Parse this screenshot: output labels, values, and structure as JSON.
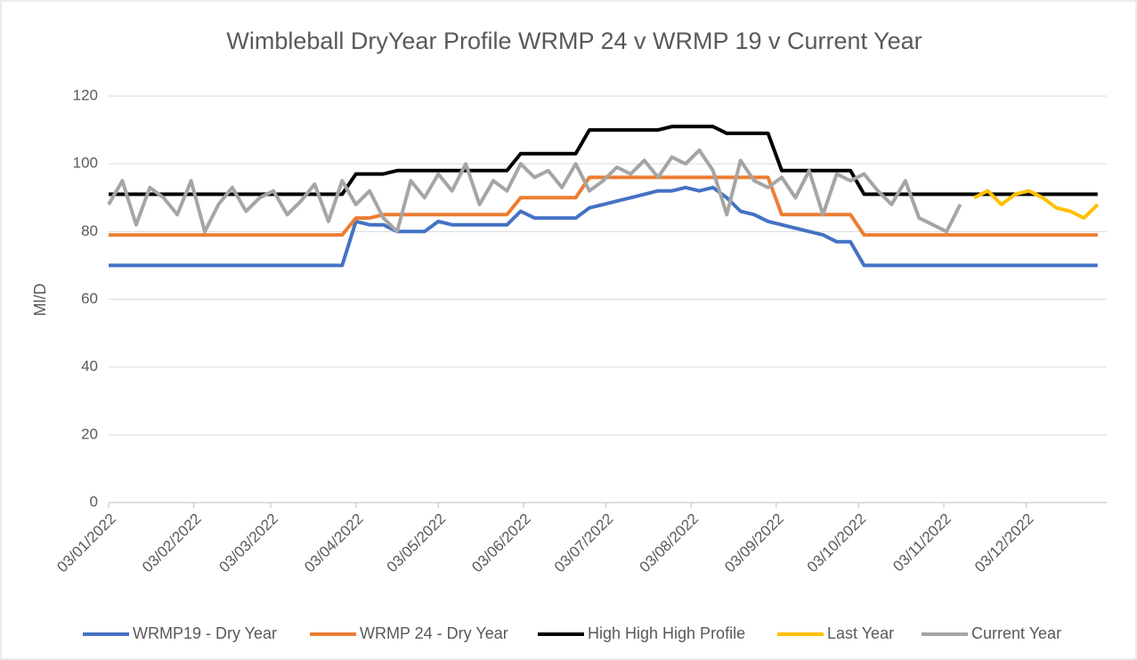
{
  "chart_data": {
    "type": "line",
    "title": "Wimbleball DryYear Profile WRMP 24 v WRMP 19 v Current Year",
    "y_label": "Ml/D",
    "ylim": [
      0,
      120
    ],
    "yticks": [
      0,
      20,
      40,
      60,
      80,
      100,
      120
    ],
    "grid": true,
    "xlim": [
      "03/01/2022",
      "31/12/2022"
    ],
    "xticks": [
      "03/01/2022",
      "03/02/2022",
      "03/03/2022",
      "03/04/2022",
      "03/05/2022",
      "03/06/2022",
      "03/07/2022",
      "03/08/2022",
      "03/09/2022",
      "03/10/2022",
      "03/11/2022",
      "03/12/2022"
    ],
    "legend": "bottom",
    "x": [
      "03/01/2022",
      "08/01/2022",
      "13/01/2022",
      "18/01/2022",
      "23/01/2022",
      "28/01/2022",
      "02/02/2022",
      "07/02/2022",
      "12/02/2022",
      "17/02/2022",
      "22/02/2022",
      "27/02/2022",
      "04/03/2022",
      "09/03/2022",
      "14/03/2022",
      "19/03/2022",
      "24/03/2022",
      "29/03/2022",
      "03/04/2022",
      "08/04/2022",
      "13/04/2022",
      "18/04/2022",
      "23/04/2022",
      "28/04/2022",
      "03/05/2022",
      "08/05/2022",
      "13/05/2022",
      "18/05/2022",
      "23/05/2022",
      "28/05/2022",
      "02/06/2022",
      "07/06/2022",
      "12/06/2022",
      "17/06/2022",
      "22/06/2022",
      "27/06/2022",
      "02/07/2022",
      "07/07/2022",
      "12/07/2022",
      "17/07/2022",
      "22/07/2022",
      "27/07/2022",
      "01/08/2022",
      "06/08/2022",
      "11/08/2022",
      "16/08/2022",
      "21/08/2022",
      "26/08/2022",
      "31/08/2022",
      "05/09/2022",
      "10/09/2022",
      "15/09/2022",
      "20/09/2022",
      "25/09/2022",
      "30/09/2022",
      "05/10/2022",
      "10/10/2022",
      "15/10/2022",
      "20/10/2022",
      "25/10/2022",
      "30/10/2022",
      "04/11/2022",
      "09/11/2022",
      "14/11/2022",
      "19/11/2022",
      "24/11/2022",
      "29/11/2022",
      "04/12/2022",
      "09/12/2022",
      "14/12/2022",
      "19/12/2022",
      "24/12/2022",
      "29/12/2022"
    ],
    "series": [
      {
        "name": "WRMP19 - Dry Year",
        "color": "#4472c4",
        "values": [
          70,
          70,
          70,
          70,
          70,
          70,
          70,
          70,
          70,
          70,
          70,
          70,
          70,
          70,
          70,
          70,
          70,
          70,
          83,
          82,
          82,
          80,
          80,
          80,
          83,
          82,
          82,
          82,
          82,
          82,
          86,
          84,
          84,
          84,
          84,
          87,
          88,
          89,
          90,
          91,
          92,
          92,
          93,
          92,
          93,
          90,
          86,
          85,
          83,
          82,
          81,
          80,
          79,
          77,
          77,
          70,
          70,
          70,
          70,
          70,
          70,
          70,
          70,
          70,
          70,
          70,
          70,
          70,
          70,
          70,
          70,
          70,
          70
        ]
      },
      {
        "name": "WRMP 24 - Dry Year",
        "color": "#ed7d31",
        "values": [
          79,
          79,
          79,
          79,
          79,
          79,
          79,
          79,
          79,
          79,
          79,
          79,
          79,
          79,
          79,
          79,
          79,
          79,
          84,
          84,
          85,
          85,
          85,
          85,
          85,
          85,
          85,
          85,
          85,
          85,
          90,
          90,
          90,
          90,
          90,
          96,
          96,
          96,
          96,
          96,
          96,
          96,
          96,
          96,
          96,
          96,
          96,
          96,
          96,
          85,
          85,
          85,
          85,
          85,
          85,
          79,
          79,
          79,
          79,
          79,
          79,
          79,
          79,
          79,
          79,
          79,
          79,
          79,
          79,
          79,
          79,
          79,
          79
        ]
      },
      {
        "name": "High High High Profile",
        "color": "#000000",
        "values": [
          91,
          91,
          91,
          91,
          91,
          91,
          91,
          91,
          91,
          91,
          91,
          91,
          91,
          91,
          91,
          91,
          91,
          91,
          97,
          97,
          97,
          98,
          98,
          98,
          98,
          98,
          98,
          98,
          98,
          98,
          103,
          103,
          103,
          103,
          103,
          110,
          110,
          110,
          110,
          110,
          110,
          111,
          111,
          111,
          111,
          109,
          109,
          109,
          109,
          98,
          98,
          98,
          98,
          98,
          98,
          91,
          91,
          91,
          91,
          91,
          91,
          91,
          91,
          91,
          91,
          91,
          91,
          91,
          91,
          91,
          91,
          91,
          91
        ]
      },
      {
        "name": "Last Year",
        "color": "#ffc000",
        "values": [
          null,
          null,
          null,
          null,
          null,
          null,
          null,
          null,
          null,
          null,
          null,
          null,
          null,
          null,
          null,
          null,
          null,
          null,
          null,
          null,
          null,
          null,
          null,
          null,
          null,
          null,
          null,
          null,
          null,
          null,
          null,
          null,
          null,
          null,
          null,
          null,
          null,
          null,
          null,
          null,
          null,
          null,
          null,
          null,
          null,
          null,
          null,
          null,
          null,
          null,
          null,
          null,
          null,
          null,
          null,
          null,
          null,
          null,
          null,
          null,
          null,
          null,
          null,
          90,
          92,
          88,
          91,
          92,
          90,
          87,
          86,
          84,
          88
        ]
      },
      {
        "name": "Current Year",
        "color": "#a5a5a5",
        "values": [
          88,
          95,
          82,
          93,
          90,
          85,
          95,
          80,
          88,
          93,
          86,
          90,
          92,
          85,
          89,
          94,
          83,
          95,
          88,
          92,
          84,
          80,
          95,
          90,
          97,
          92,
          100,
          88,
          95,
          92,
          100,
          96,
          98,
          93,
          100,
          92,
          95,
          99,
          97,
          101,
          96,
          102,
          100,
          104,
          98,
          85,
          101,
          95,
          93,
          96,
          90,
          98,
          85,
          97,
          95,
          97,
          92,
          88,
          95,
          84,
          82,
          80,
          88,
          null,
          null,
          null,
          null,
          null,
          null,
          null,
          null,
          null,
          null
        ]
      }
    ]
  }
}
